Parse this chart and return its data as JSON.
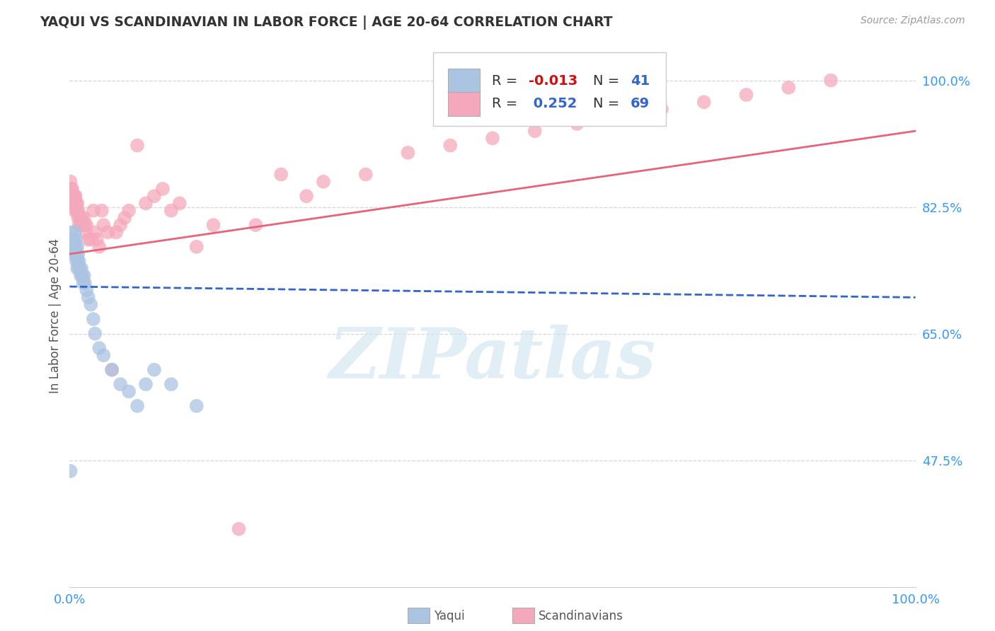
{
  "title": "YAQUI VS SCANDINAVIAN IN LABOR FORCE | AGE 20-64 CORRELATION CHART",
  "source_text": "Source: ZipAtlas.com",
  "ylabel": "In Labor Force | Age 20-64",
  "xlim": [
    0.0,
    1.0
  ],
  "ylim": [
    0.3,
    1.05
  ],
  "yticks": [
    0.475,
    0.65,
    0.825,
    1.0
  ],
  "ytick_labels": [
    "47.5%",
    "65.0%",
    "82.5%",
    "100.0%"
  ],
  "xtick_labels": [
    "0.0%",
    "100.0%"
  ],
  "watermark": "ZIPatlas",
  "yaqui_R": "-0.013",
  "yaqui_N": "41",
  "scand_R": "0.252",
  "scand_N": "69",
  "yaqui_color": "#aac4e2",
  "scand_color": "#f5a8bc",
  "yaqui_line_color": "#3366cc",
  "scand_line_color": "#e8637a",
  "background_color": "#ffffff",
  "grid_color": "#cccccc",
  "yaqui_x": [
    0.001,
    0.002,
    0.003,
    0.004,
    0.004,
    0.005,
    0.005,
    0.006,
    0.006,
    0.007,
    0.007,
    0.008,
    0.008,
    0.009,
    0.009,
    0.01,
    0.01,
    0.011,
    0.011,
    0.012,
    0.013,
    0.014,
    0.015,
    0.016,
    0.017,
    0.018,
    0.02,
    0.022,
    0.025,
    0.028,
    0.03,
    0.035,
    0.04,
    0.05,
    0.06,
    0.07,
    0.08,
    0.09,
    0.1,
    0.12,
    0.15
  ],
  "yaqui_y": [
    0.46,
    0.79,
    0.77,
    0.76,
    0.78,
    0.78,
    0.77,
    0.79,
    0.76,
    0.77,
    0.78,
    0.75,
    0.76,
    0.74,
    0.77,
    0.75,
    0.76,
    0.74,
    0.75,
    0.74,
    0.73,
    0.74,
    0.73,
    0.72,
    0.73,
    0.72,
    0.71,
    0.7,
    0.69,
    0.67,
    0.65,
    0.63,
    0.62,
    0.6,
    0.58,
    0.57,
    0.55,
    0.58,
    0.6,
    0.58,
    0.55
  ],
  "scand_x": [
    0.001,
    0.001,
    0.002,
    0.002,
    0.003,
    0.003,
    0.004,
    0.004,
    0.005,
    0.005,
    0.006,
    0.006,
    0.007,
    0.007,
    0.008,
    0.008,
    0.009,
    0.009,
    0.01,
    0.01,
    0.011,
    0.012,
    0.013,
    0.014,
    0.015,
    0.016,
    0.017,
    0.018,
    0.019,
    0.02,
    0.022,
    0.025,
    0.028,
    0.03,
    0.032,
    0.035,
    0.038,
    0.04,
    0.045,
    0.05,
    0.055,
    0.06,
    0.065,
    0.07,
    0.08,
    0.09,
    0.1,
    0.11,
    0.12,
    0.13,
    0.15,
    0.17,
    0.2,
    0.22,
    0.25,
    0.28,
    0.3,
    0.35,
    0.4,
    0.45,
    0.5,
    0.55,
    0.6,
    0.65,
    0.7,
    0.75,
    0.8,
    0.85,
    0.9
  ],
  "scand_y": [
    0.86,
    0.84,
    0.85,
    0.84,
    0.84,
    0.85,
    0.83,
    0.84,
    0.83,
    0.84,
    0.82,
    0.84,
    0.83,
    0.84,
    0.82,
    0.83,
    0.82,
    0.83,
    0.81,
    0.82,
    0.8,
    0.81,
    0.8,
    0.81,
    0.8,
    0.8,
    0.81,
    0.8,
    0.79,
    0.8,
    0.78,
    0.78,
    0.82,
    0.79,
    0.78,
    0.77,
    0.82,
    0.8,
    0.79,
    0.6,
    0.79,
    0.8,
    0.81,
    0.82,
    0.91,
    0.83,
    0.84,
    0.85,
    0.82,
    0.83,
    0.77,
    0.8,
    0.38,
    0.8,
    0.87,
    0.84,
    0.86,
    0.87,
    0.9,
    0.91,
    0.92,
    0.93,
    0.94,
    0.95,
    0.96,
    0.97,
    0.98,
    0.99,
    1.0
  ],
  "yaqui_line_x": [
    0.0,
    1.0
  ],
  "yaqui_line_y": [
    0.715,
    0.7
  ],
  "scand_line_x": [
    0.0,
    1.0
  ],
  "scand_line_y": [
    0.76,
    0.93
  ]
}
